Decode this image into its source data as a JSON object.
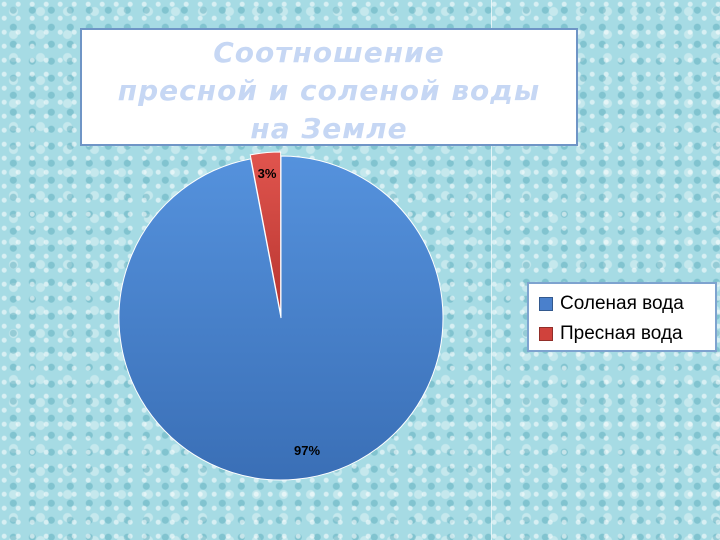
{
  "title_lines": [
    "Соотношение",
    "пресной и соленой воды",
    "на Земле"
  ],
  "chart_data": {
    "type": "pie",
    "title": "Соотношение пресной и соленой воды на Земле",
    "categories": [
      "Соленая вода",
      "Пресная вода"
    ],
    "values": [
      97,
      3
    ],
    "data_labels": [
      "97%",
      "3%"
    ],
    "colors": [
      "#4a80cc",
      "#d0423c"
    ],
    "legend_position": "right"
  }
}
